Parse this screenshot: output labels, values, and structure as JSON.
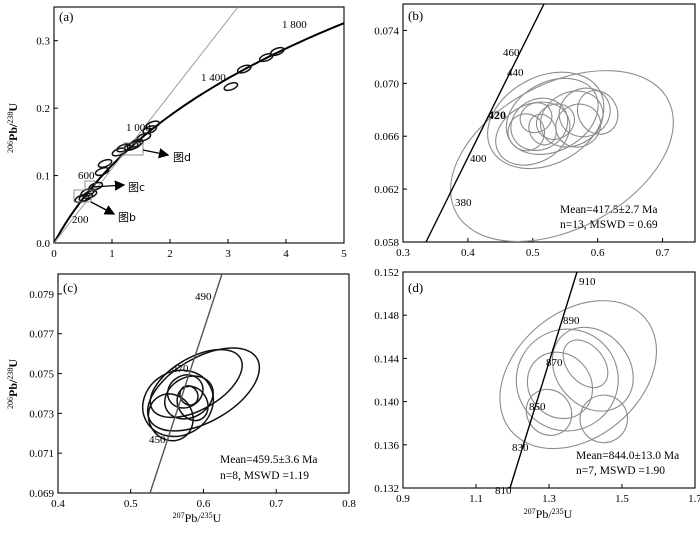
{
  "chart_data": [
    {
      "panel": "(a)",
      "type": "scatter",
      "xlim": [
        0,
        5
      ],
      "ylim": [
        0,
        0.35
      ],
      "xticks": [
        "0",
        "1",
        "2",
        "3",
        "4",
        "5"
      ],
      "yticks": [
        "0.0",
        "0.1",
        "0.2",
        "0.3"
      ],
      "ylabel": "206Pb/238U",
      "concordia_labels": [
        "200",
        "600",
        "1 000",
        "1 400",
        "1 800"
      ],
      "arrow_labels": [
        "图d",
        "图c",
        "图b"
      ],
      "ellipses": [
        {
          "x": 0.48,
          "y": 0.066
        },
        {
          "x": 0.55,
          "y": 0.068
        },
        {
          "x": 0.62,
          "y": 0.072
        },
        {
          "x": 0.58,
          "y": 0.075
        },
        {
          "x": 0.72,
          "y": 0.084
        },
        {
          "x": 0.83,
          "y": 0.106
        },
        {
          "x": 0.88,
          "y": 0.118
        },
        {
          "x": 1.12,
          "y": 0.135
        },
        {
          "x": 1.2,
          "y": 0.141
        },
        {
          "x": 1.33,
          "y": 0.143
        },
        {
          "x": 1.38,
          "y": 0.145
        },
        {
          "x": 1.42,
          "y": 0.148
        },
        {
          "x": 1.55,
          "y": 0.157
        },
        {
          "x": 1.65,
          "y": 0.168
        },
        {
          "x": 1.7,
          "y": 0.175
        },
        {
          "x": 3.05,
          "y": 0.232
        },
        {
          "x": 3.28,
          "y": 0.258
        },
        {
          "x": 3.66,
          "y": 0.275
        },
        {
          "x": 3.85,
          "y": 0.284
        }
      ]
    },
    {
      "panel": "(b)",
      "type": "scatter",
      "xlim": [
        0.3,
        0.75
      ],
      "ylim": [
        0.058,
        0.076
      ],
      "xticks": [
        "0.3",
        "0.4",
        "0.5",
        "0.6",
        "0.7"
      ],
      "yticks": [
        "0.058",
        "0.062",
        "0.066",
        "0.070",
        "0.074"
      ],
      "concordia_labels": [
        "460",
        "440",
        "420",
        "400",
        "380"
      ],
      "mean_text": "Mean=417.5±2.7 Ma",
      "n_text": "n=13, MSWD = 0.69",
      "ellipses": [
        {
          "x": 0.545,
          "y": 0.0645,
          "rx": 0.185,
          "ry": 0.0055
        },
        {
          "x": 0.52,
          "y": 0.0672,
          "rx": 0.095,
          "ry": 0.0033
        },
        {
          "x": 0.53,
          "y": 0.0675,
          "rx": 0.075,
          "ry": 0.0026
        },
        {
          "x": 0.5,
          "y": 0.0662,
          "rx": 0.06,
          "ry": 0.0022
        },
        {
          "x": 0.51,
          "y": 0.0669,
          "rx": 0.045,
          "ry": 0.0019
        },
        {
          "x": 0.56,
          "y": 0.0673,
          "rx": 0.05,
          "ry": 0.002
        },
        {
          "x": 0.58,
          "y": 0.0678,
          "rx": 0.04,
          "ry": 0.0018
        },
        {
          "x": 0.57,
          "y": 0.0668,
          "rx": 0.035,
          "ry": 0.0016
        },
        {
          "x": 0.49,
          "y": 0.0663,
          "rx": 0.028,
          "ry": 0.0014
        },
        {
          "x": 0.515,
          "y": 0.0665,
          "rx": 0.02,
          "ry": 0.0012
        },
        {
          "x": 0.6,
          "y": 0.0678,
          "rx": 0.03,
          "ry": 0.0017
        },
        {
          "x": 0.535,
          "y": 0.0671,
          "rx": 0.03,
          "ry": 0.0013
        },
        {
          "x": 0.505,
          "y": 0.0674,
          "rx": 0.025,
          "ry": 0.0011
        }
      ]
    },
    {
      "panel": "(c)",
      "type": "scatter",
      "xlim": [
        0.4,
        0.8
      ],
      "ylim": [
        0.069,
        0.08
      ],
      "xticks": [
        "0.4",
        "0.5",
        "0.6",
        "0.7",
        "0.8"
      ],
      "yticks": [
        "0.069",
        "0.071",
        "0.073",
        "0.075",
        "0.077",
        "0.079"
      ],
      "ylabel": "206Pb/238U",
      "xlabel": "207Pb/235U",
      "concordia_labels": [
        "490",
        "470",
        "450"
      ],
      "mean_text": "Mean=459.5±3.6 Ma",
      "n_text": "n=8, MSWD =1.19",
      "ellipses": [
        {
          "x": 0.6,
          "y": 0.0742,
          "rx": 0.085,
          "ry": 0.0016
        },
        {
          "x": 0.59,
          "y": 0.0745,
          "rx": 0.07,
          "ry": 0.0013
        },
        {
          "x": 0.565,
          "y": 0.0735,
          "rx": 0.05,
          "ry": 0.0016
        },
        {
          "x": 0.58,
          "y": 0.0738,
          "rx": 0.035,
          "ry": 0.001
        },
        {
          "x": 0.575,
          "y": 0.0741,
          "rx": 0.025,
          "ry": 0.0008
        },
        {
          "x": 0.58,
          "y": 0.0739,
          "rx": 0.012,
          "ry": 0.0005
        },
        {
          "x": 0.555,
          "y": 0.0728,
          "rx": 0.03,
          "ry": 0.0012
        },
        {
          "x": 0.585,
          "y": 0.0735,
          "rx": 0.02,
          "ry": 0.0009
        }
      ]
    },
    {
      "panel": "(d)",
      "type": "scatter",
      "xlim": [
        0.9,
        1.7
      ],
      "ylim": [
        0.132,
        0.152
      ],
      "xticks": [
        "0.9",
        "1.1",
        "1.3",
        "1.5",
        "1.7"
      ],
      "yticks": [
        "0.132",
        "0.136",
        "0.140",
        "0.144",
        "0.148",
        "0.152"
      ],
      "xlabel": "207Pb/235U",
      "concordia_labels": [
        "910",
        "890",
        "870",
        "850",
        "830",
        "810"
      ],
      "mean_text": "Mean=844.0±13.0 Ma",
      "n_text": "n=7, MSWD =1.90",
      "ellipses": [
        {
          "x": 1.38,
          "y": 0.1425,
          "rx": 0.24,
          "ry": 0.0058
        },
        {
          "x": 1.35,
          "y": 0.142,
          "rx": 0.14,
          "ry": 0.0047
        },
        {
          "x": 1.42,
          "y": 0.143,
          "rx": 0.1,
          "ry": 0.0042
        },
        {
          "x": 1.33,
          "y": 0.1415,
          "rx": 0.085,
          "ry": 0.0032
        },
        {
          "x": 1.3,
          "y": 0.139,
          "rx": 0.06,
          "ry": 0.0022
        },
        {
          "x": 1.45,
          "y": 0.1384,
          "rx": 0.065,
          "ry": 0.0022
        },
        {
          "x": 1.4,
          "y": 0.1435,
          "rx": 0.05,
          "ry": 0.0025
        }
      ]
    }
  ]
}
